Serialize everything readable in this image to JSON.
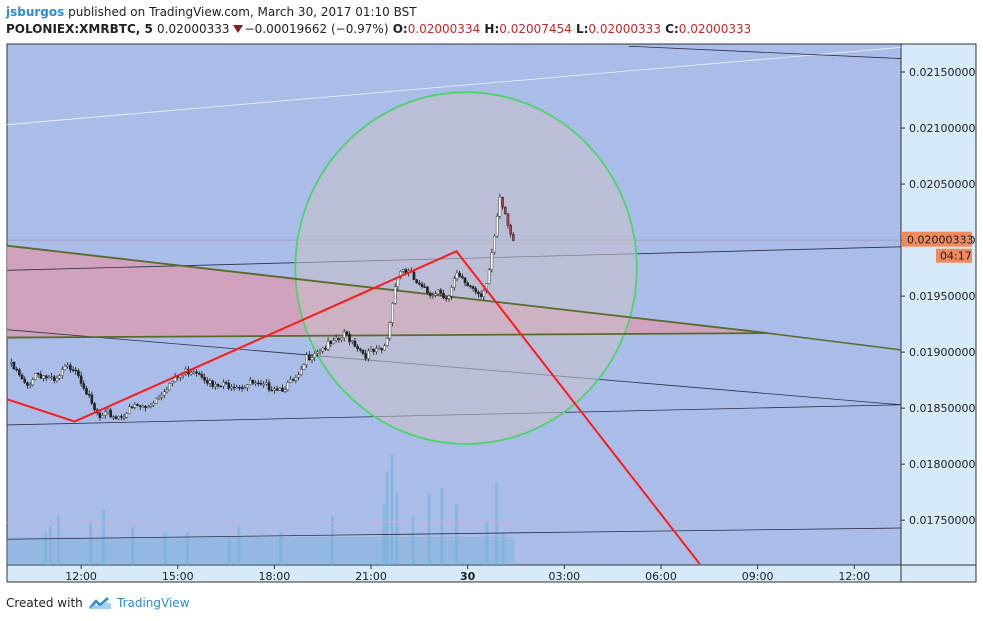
{
  "header": {
    "author": "jsburgos",
    "published_text": "published on TradingView.com, March 30, 2017 01:10 BST",
    "symbol": "POLONIEX:XMRBTC, 5",
    "last": "0.02000333",
    "change": "−0.00019662 (−0.97%)",
    "open_label": "O:",
    "open": "0.02000334",
    "high_label": "H:",
    "high": "0.02007454",
    "low_label": "L:",
    "low": "0.02000333",
    "close_label": "C:",
    "close": "0.02000333"
  },
  "colors": {
    "background": "#a9bde8",
    "axis_panel": "#d6eafa",
    "candle_up": "#ffffff",
    "candle_down": "#222222",
    "price_tag": "#f08a5d",
    "drawing_red": "#ff1a1a",
    "circle_green": "#4cd36b",
    "trend_green": "#5a6a2a",
    "wedge_fill": "#d79db5",
    "volume": "#6fb0d8",
    "link_blue": "#2e8bd0"
  },
  "chart_data": {
    "type": "candlestick",
    "title": "POLONIEX:XMRBTC, 5",
    "xlabel": "",
    "ylabel": "",
    "y_range": [
      0.0171,
      0.02175
    ],
    "x_range_hours": [
      9.7,
      37.45
    ],
    "x_ticks": [
      {
        "t": 12,
        "label": "12:00"
      },
      {
        "t": 15,
        "label": "15:00"
      },
      {
        "t": 18,
        "label": "18:00"
      },
      {
        "t": 21,
        "label": "21:00"
      },
      {
        "t": 24,
        "label": "30"
      },
      {
        "t": 27,
        "label": "03:00"
      },
      {
        "t": 30,
        "label": "06:00"
      },
      {
        "t": 33,
        "label": "09:00"
      },
      {
        "t": 36,
        "label": "12:00"
      }
    ],
    "y_ticks": [
      {
        "v": 0.0175,
        "label": "0.01750000"
      },
      {
        "v": 0.018,
        "label": "0.01800000"
      },
      {
        "v": 0.0185,
        "label": "0.01850000"
      },
      {
        "v": 0.019,
        "label": "0.01900000"
      },
      {
        "v": 0.0195,
        "label": "0.01950000"
      },
      {
        "v": 0.02,
        "label": "0.02000000"
      },
      {
        "v": 0.0205,
        "label": "0.02050000"
      },
      {
        "v": 0.021,
        "label": "0.02100000"
      },
      {
        "v": 0.0215,
        "label": "0.02150000"
      }
    ],
    "last_price": {
      "value": 0.02000333,
      "label": "0.02000333",
      "countdown": "04:17"
    },
    "price_path": [
      [
        9.75,
        0.0189
      ],
      [
        10.0,
        0.01882
      ],
      [
        10.3,
        0.01868
      ],
      [
        10.6,
        0.01882
      ],
      [
        10.9,
        0.01878
      ],
      [
        11.2,
        0.01872
      ],
      [
        11.5,
        0.01885
      ],
      [
        11.8,
        0.01888
      ],
      [
        12.1,
        0.0187
      ],
      [
        12.35,
        0.0185
      ],
      [
        12.6,
        0.0184
      ],
      [
        12.85,
        0.01845
      ],
      [
        13.1,
        0.01842
      ],
      [
        13.4,
        0.01846
      ],
      [
        13.7,
        0.01852
      ],
      [
        14.0,
        0.0185
      ],
      [
        14.3,
        0.01858
      ],
      [
        14.6,
        0.01868
      ],
      [
        14.9,
        0.01875
      ],
      [
        15.2,
        0.01882
      ],
      [
        15.5,
        0.01885
      ],
      [
        15.8,
        0.0188
      ],
      [
        16.1,
        0.01868
      ],
      [
        16.4,
        0.0187
      ],
      [
        16.7,
        0.01872
      ],
      [
        17.0,
        0.0187
      ],
      [
        17.3,
        0.01872
      ],
      [
        17.6,
        0.01868
      ],
      [
        17.9,
        0.0187
      ],
      [
        18.2,
        0.01868
      ],
      [
        18.5,
        0.01872
      ],
      [
        18.8,
        0.01878
      ],
      [
        19.0,
        0.01895
      ],
      [
        19.3,
        0.01902
      ],
      [
        19.6,
        0.01905
      ],
      [
        19.9,
        0.01908
      ],
      [
        20.2,
        0.01916
      ],
      [
        20.5,
        0.01908
      ],
      [
        20.8,
        0.01898
      ],
      [
        21.1,
        0.019
      ],
      [
        21.3,
        0.019
      ],
      [
        21.45,
        0.01905
      ],
      [
        21.6,
        0.0193
      ],
      [
        21.75,
        0.01962
      ],
      [
        21.95,
        0.01975
      ],
      [
        22.2,
        0.0197
      ],
      [
        22.5,
        0.01958
      ],
      [
        22.8,
        0.01952
      ],
      [
        23.1,
        0.01956
      ],
      [
        23.4,
        0.01948
      ],
      [
        23.65,
        0.01968
      ],
      [
        23.9,
        0.01962
      ],
      [
        24.15,
        0.01958
      ],
      [
        24.4,
        0.01952
      ],
      [
        24.6,
        0.01962
      ],
      [
        24.75,
        0.01985
      ],
      [
        24.9,
        0.02015
      ],
      [
        25.0,
        0.02035
      ],
      [
        25.15,
        0.02025
      ],
      [
        25.3,
        0.02008
      ],
      [
        25.45,
        0.02
      ]
    ],
    "volume_bars": [
      [
        10.9,
        0.3
      ],
      [
        11.05,
        0.35
      ],
      [
        11.3,
        0.45
      ],
      [
        12.3,
        0.4
      ],
      [
        12.7,
        0.5
      ],
      [
        13.6,
        0.35
      ],
      [
        14.6,
        0.3
      ],
      [
        15.3,
        0.3
      ],
      [
        16.6,
        0.25
      ],
      [
        16.9,
        0.35
      ],
      [
        18.2,
        0.3
      ],
      [
        19.8,
        0.45
      ],
      [
        21.4,
        0.55
      ],
      [
        21.5,
        0.85
      ],
      [
        21.65,
        1.0
      ],
      [
        21.8,
        0.65
      ],
      [
        22.3,
        0.45
      ],
      [
        22.8,
        0.65
      ],
      [
        23.2,
        0.7
      ],
      [
        23.65,
        0.55
      ],
      [
        24.6,
        0.4
      ],
      [
        24.9,
        0.75
      ],
      [
        25.1,
        0.3
      ]
    ],
    "drawings": {
      "red_zigzag": [
        [
          9.7,
          0.01858
        ],
        [
          11.8,
          0.01838
        ],
        [
          23.65,
          0.0199
        ],
        [
          31.2,
          0.01711
        ]
      ],
      "green_circle": {
        "center": [
          23.95,
          0.01975
        ],
        "radius_hours": 5.3,
        "radius_price": 0.00157
      },
      "wedge": {
        "upper": [
          [
            9.7,
            0.01995
          ],
          [
            33.3,
            0.01917
          ]
        ],
        "lower": [
          [
            9.7,
            0.01913
          ],
          [
            33.3,
            0.01917
          ]
        ]
      },
      "trend_extension": [
        [
          33.3,
          0.01917
        ],
        [
          37.45,
          0.01902
        ]
      ],
      "thin_lines": [
        [
          [
            9.7,
            0.01973
          ],
          [
            37.45,
            0.01994
          ]
        ],
        [
          [
            9.7,
            0.01835
          ],
          [
            37.45,
            0.01853
          ]
        ],
        [
          [
            9.7,
            0.0192
          ],
          [
            37.45,
            0.01853
          ]
        ],
        [
          [
            9.7,
            0.02103
          ],
          [
            37.45,
            0.02172
          ]
        ],
        [
          [
            29.0,
            0.02173
          ],
          [
            37.45,
            0.02162
          ]
        ],
        [
          [
            9.7,
            0.01733
          ],
          [
            37.45,
            0.01743
          ]
        ],
        [
          [
            9.7,
            0.01748
          ],
          [
            37.45,
            0.01748
          ]
        ],
        [
          [
            9.7,
            0.02
          ],
          [
            37.45,
            0.02
          ]
        ]
      ]
    }
  },
  "footer": {
    "created_with": "Created with",
    "brand": "TradingView"
  }
}
